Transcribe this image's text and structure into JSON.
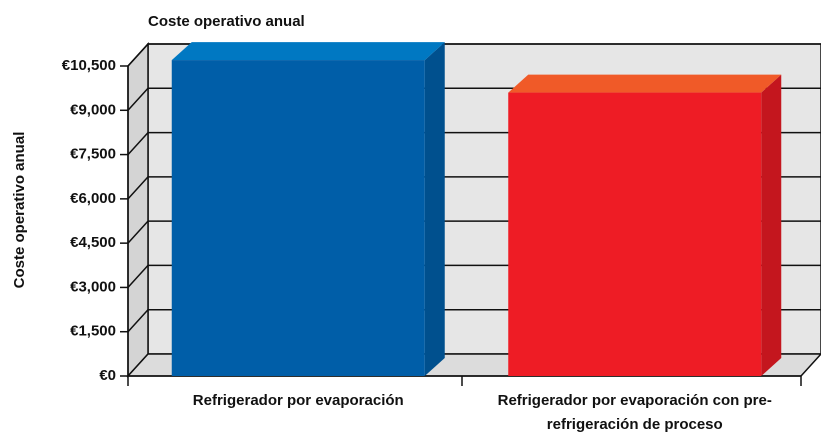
{
  "chart_data": {
    "type": "bar3d",
    "title": "Coste operativo anual",
    "y_label": "Coste operativo anual",
    "categories": [
      "Refrigerador por evaporación",
      "Refrigerador por evaporación con pre-refrigeración de proceso"
    ],
    "values": [
      10700,
      9600
    ],
    "colors": [
      {
        "front": "#005ea8",
        "side": "#00508e",
        "top": "#0078c2"
      },
      {
        "front": "#ee1c25",
        "side": "#c4161e",
        "top": "#f05a28"
      }
    ],
    "ylim": [
      0,
      10500
    ],
    "yticks": [
      {
        "value": 0,
        "label": "€0"
      },
      {
        "value": 1500,
        "label": "€1,500"
      },
      {
        "value": 3000,
        "label": "€3,000"
      },
      {
        "value": 4500,
        "label": "€4,500"
      },
      {
        "value": 6000,
        "label": "€6,000"
      },
      {
        "value": 7500,
        "label": "€7,500"
      },
      {
        "value": 9000,
        "label": "€9,000"
      },
      {
        "value": 10500,
        "label": "€10,500"
      }
    ],
    "grid": true
  }
}
